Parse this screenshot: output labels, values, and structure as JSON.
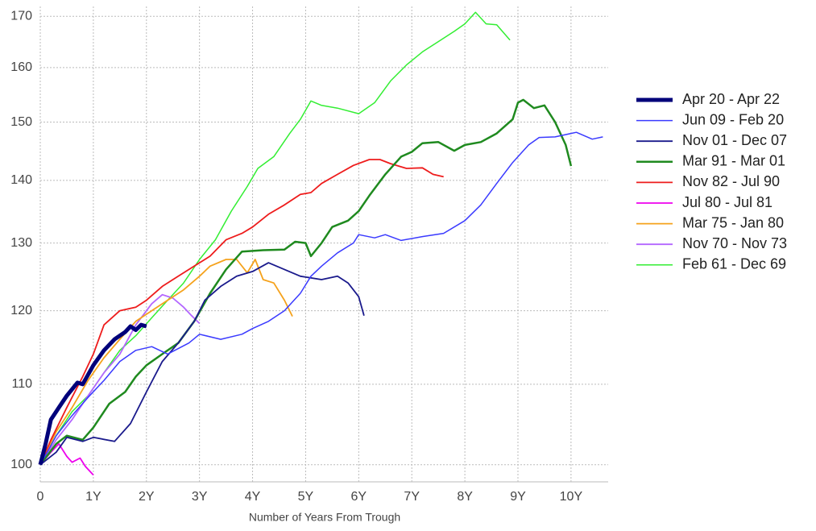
{
  "chart_data": {
    "type": "line",
    "x_label": "Number of Years From Trough",
    "log_y": true,
    "grid": true,
    "legend": "right",
    "xlim": [
      0,
      10.7
    ],
    "ylim": [
      98,
      172
    ],
    "xticks": [
      0,
      {
        "value": 1,
        "label": "1Y"
      },
      {
        "value": 2,
        "label": "2Y"
      },
      {
        "value": 3,
        "label": "3Y"
      },
      {
        "value": 4,
        "label": "4Y"
      },
      {
        "value": 5,
        "label": "5Y"
      },
      {
        "value": 6,
        "label": "6Y"
      },
      {
        "value": 7,
        "label": "7Y"
      },
      {
        "value": 8,
        "label": "8Y"
      },
      {
        "value": 9,
        "label": "9Y"
      },
      {
        "value": 10,
        "label": "10Y"
      }
    ],
    "yticks": [
      100,
      110,
      120,
      130,
      140,
      150,
      160,
      170
    ],
    "series": [
      {
        "name": "Apr 20 - Apr 22",
        "color": "#00007a",
        "line_width": 5,
        "x": [
          0,
          0.1,
          0.2,
          0.35,
          0.5,
          0.7,
          0.8,
          1.0,
          1.2,
          1.4,
          1.6,
          1.7,
          1.8,
          1.9,
          2.0
        ],
        "values": [
          100,
          102.5,
          105.5,
          107,
          108.5,
          110.2,
          110,
          112.5,
          114.5,
          116,
          117,
          117.8,
          117.3,
          118,
          117.8
        ]
      },
      {
        "name": "Jun 09 - Feb 20",
        "color": "#3a3aff",
        "line_width": 1.5,
        "x": [
          0,
          0.3,
          0.6,
          0.9,
          1.2,
          1.5,
          1.8,
          2.1,
          2.4,
          2.8,
          3.0,
          3.4,
          3.8,
          4.0,
          4.3,
          4.6,
          4.9,
          5.1,
          5.3,
          5.6,
          5.9,
          6.0,
          6.3,
          6.5,
          6.8,
          7.2,
          7.6,
          8.0,
          8.3,
          8.6,
          8.9,
          9.2,
          9.4,
          9.7,
          10.0,
          10.1,
          10.4,
          10.6
        ],
        "values": [
          100,
          103.5,
          106,
          108.3,
          110.5,
          113,
          114.5,
          115,
          114,
          115.5,
          116.7,
          116,
          116.7,
          117.5,
          118.5,
          120,
          122.5,
          125,
          126.5,
          128.5,
          130,
          131.3,
          130.8,
          131.3,
          130.4,
          131,
          131.5,
          133.5,
          136,
          139.5,
          143,
          146,
          147.3,
          147.4,
          148,
          148.2,
          147,
          147.4
        ]
      },
      {
        "name": "Nov 01 - Dec 07",
        "color": "#1a1a8c",
        "line_width": 1.8,
        "x": [
          0,
          0.3,
          0.5,
          0.8,
          1.0,
          1.4,
          1.7,
          2.0,
          2.3,
          2.6,
          2.9,
          3.1,
          3.4,
          3.7,
          4.0,
          4.3,
          4.6,
          4.9,
          5.3,
          5.6,
          5.8,
          6.0,
          6.1
        ],
        "values": [
          100,
          101.5,
          103.3,
          102.8,
          103.3,
          102.8,
          105,
          109,
          113,
          115.5,
          118.5,
          121.5,
          123.5,
          125,
          125.7,
          127,
          126,
          125,
          124.5,
          125,
          124,
          122,
          119.3
        ]
      },
      {
        "name": "Mar 91 - Mar 01",
        "color": "#1f8a1f",
        "line_width": 2.5,
        "x": [
          0,
          0.3,
          0.5,
          0.8,
          1.0,
          1.3,
          1.6,
          1.8,
          2.0,
          2.3,
          2.6,
          2.9,
          3.2,
          3.5,
          3.8,
          4.2,
          4.6,
          4.8,
          5.0,
          5.1,
          5.3,
          5.5,
          5.8,
          6.0,
          6.2,
          6.5,
          6.8,
          7.0,
          7.2,
          7.5,
          7.8,
          8.0,
          8.3,
          8.6,
          8.9,
          9.0,
          9.1,
          9.3,
          9.5,
          9.7,
          9.9,
          10.0
        ],
        "values": [
          100,
          102.5,
          103.5,
          103,
          104.5,
          107.5,
          109,
          111,
          112.5,
          114,
          115.5,
          118.5,
          122.5,
          126,
          128.7,
          128.9,
          129,
          130.2,
          130,
          128,
          130,
          132.5,
          133.5,
          135,
          137.5,
          141,
          144,
          144.8,
          146.3,
          146.5,
          145,
          146,
          146.5,
          148,
          150.5,
          153.5,
          154,
          152.5,
          153,
          150,
          146,
          142.4
        ]
      },
      {
        "name": "Nov 82 - Jul 90",
        "color": "#ee1c1c",
        "line_width": 1.8,
        "x": [
          0,
          0.2,
          0.5,
          0.8,
          1.0,
          1.2,
          1.5,
          1.8,
          2.0,
          2.3,
          2.6,
          2.9,
          3.2,
          3.5,
          3.8,
          4.0,
          4.3,
          4.6,
          4.9,
          5.1,
          5.3,
          5.6,
          5.9,
          6.2,
          6.4,
          6.6,
          6.9,
          7.2,
          7.4,
          7.6
        ],
        "values": [
          100,
          103,
          107,
          111,
          114,
          118,
          120,
          120.5,
          121.5,
          123.5,
          125,
          126.5,
          128,
          130.5,
          131.5,
          132.5,
          134.5,
          136,
          137.7,
          138,
          139.5,
          141,
          142.5,
          143.5,
          143.5,
          142.8,
          142,
          142.1,
          141,
          140.6
        ]
      },
      {
        "name": "Jul 80 - Jul 81",
        "color": "#ee00ee",
        "line_width": 1.8,
        "x": [
          0,
          0.2,
          0.35,
          0.5,
          0.6,
          0.75,
          0.85,
          1.0
        ],
        "values": [
          100,
          101.5,
          102.5,
          101,
          100.3,
          100.8,
          99.8,
          98.8
        ]
      },
      {
        "name": "Mar 75 - Jan 80",
        "color": "#f5a21c",
        "line_width": 1.8,
        "x": [
          0,
          0.3,
          0.6,
          0.9,
          1.2,
          1.5,
          1.8,
          2.1,
          2.4,
          2.7,
          3.0,
          3.2,
          3.5,
          3.7,
          3.9,
          4.05,
          4.2,
          4.4,
          4.6,
          4.75
        ],
        "values": [
          100,
          104,
          107,
          110.5,
          113.5,
          116,
          118.5,
          120,
          121.5,
          123,
          125,
          126.5,
          127.5,
          127.5,
          125.5,
          127.5,
          124.5,
          124,
          121.5,
          119.2
        ]
      },
      {
        "name": "Nov 70 - Nov 73",
        "color": "#b366ff",
        "line_width": 1.8,
        "x": [
          0,
          0.3,
          0.6,
          0.9,
          1.2,
          1.5,
          1.8,
          2.1,
          2.3,
          2.5,
          2.7,
          2.85,
          3.0
        ],
        "values": [
          100,
          103,
          105.5,
          108.5,
          111.5,
          114,
          118,
          121,
          122.3,
          121.8,
          120.5,
          119.3,
          118.2
        ]
      },
      {
        "name": "Feb 61 - Dec 69",
        "color": "#33ee33",
        "line_width": 1.5,
        "x": [
          0,
          0.3,
          0.6,
          0.9,
          1.2,
          1.5,
          1.8,
          2.1,
          2.4,
          2.7,
          3.0,
          3.3,
          3.6,
          3.9,
          4.1,
          4.4,
          4.7,
          4.9,
          5.1,
          5.3,
          5.6,
          6.0,
          6.3,
          6.6,
          6.9,
          7.2,
          7.5,
          7.8,
          8.0,
          8.2,
          8.4,
          8.6,
          8.85
        ],
        "values": [
          100,
          103.5,
          106.5,
          108.5,
          111.5,
          114.5,
          116.5,
          119,
          121.5,
          124,
          127.5,
          130.5,
          135,
          139,
          142,
          144,
          148,
          150.5,
          153.8,
          153,
          152.5,
          151.5,
          153.5,
          157.5,
          160.5,
          163,
          165,
          167,
          168.5,
          170.8,
          168.5,
          168.3,
          165.3
        ]
      }
    ]
  }
}
